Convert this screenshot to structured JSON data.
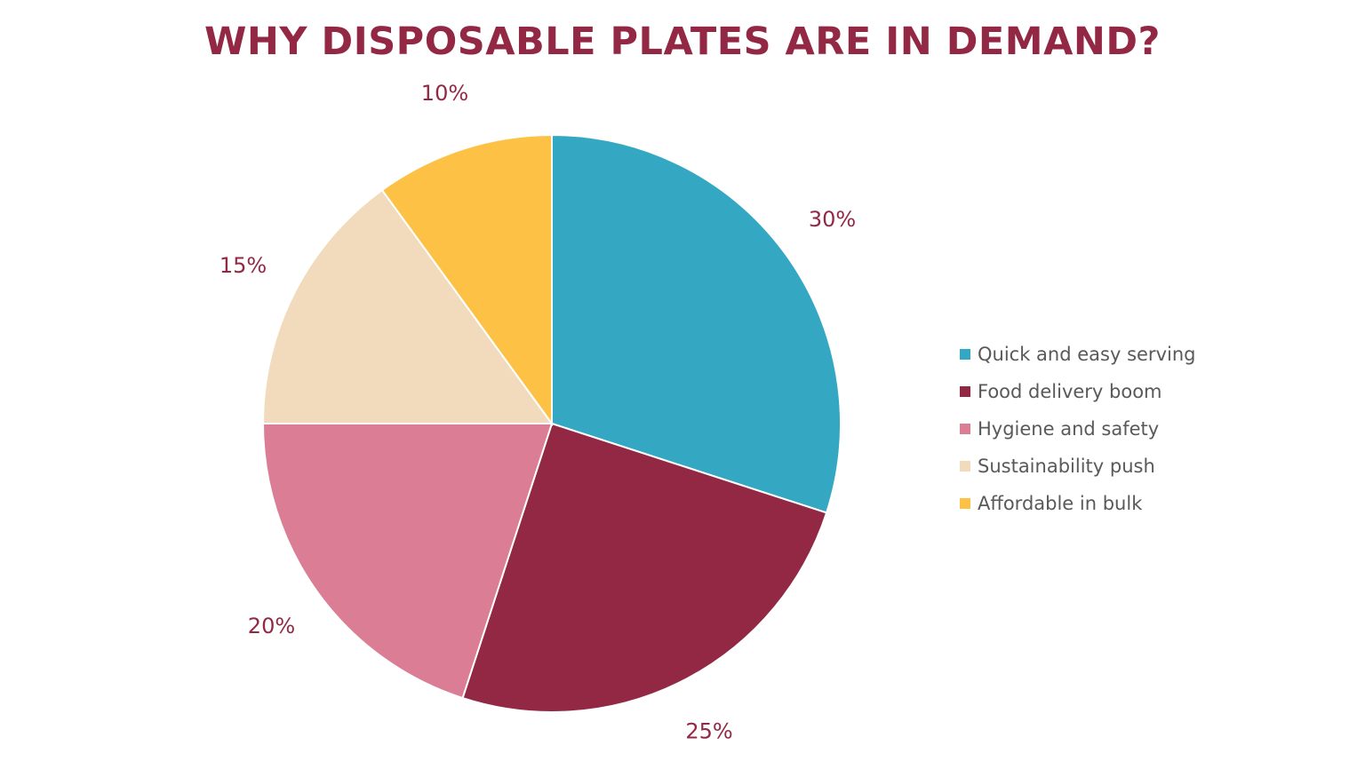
{
  "chart_data": {
    "type": "pie",
    "title": "WHY DISPOSABLE PLATES ARE IN DEMAND?",
    "categories": [
      "Quick and easy serving",
      "Food delivery boom",
      "Hygiene and safety",
      "Sustainability push",
      "Affordable in bulk"
    ],
    "values": [
      30,
      25,
      20,
      15,
      10
    ],
    "labels": [
      "30%",
      "25%",
      "20%",
      "15%",
      "10%"
    ],
    "colors": [
      "#34A8C3",
      "#932845",
      "#DB7E95",
      "#F2DBBD",
      "#FDC245"
    ],
    "legend_position": "right",
    "start_angle": "12 o'clock",
    "direction": "clockwise"
  }
}
